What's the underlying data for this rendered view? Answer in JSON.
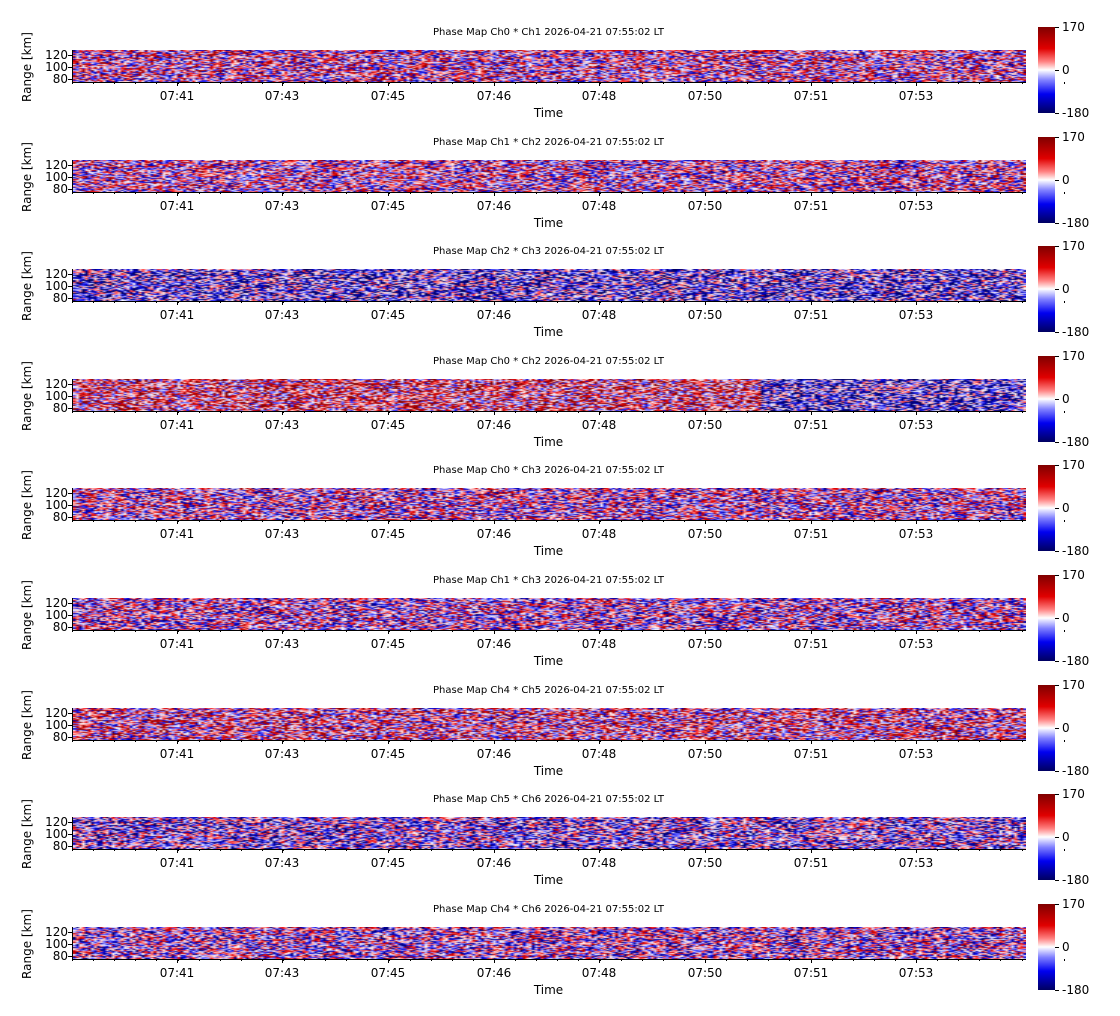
{
  "chart_data": {
    "type": "heatmap",
    "ylabel": "Range [km]",
    "xlabel": "Time",
    "yticks": [
      120,
      100,
      80
    ],
    "ylim": [
      77,
      130
    ],
    "xticks": [
      "07:41",
      "07:43",
      "07:45",
      "07:46",
      "07:48",
      "07:50",
      "07:51",
      "07:53"
    ],
    "colorbar": {
      "min": -180,
      "max": 170,
      "ticks": [
        "170",
        "0",
        "-180"
      ],
      "colormap": "seismic"
    },
    "panels": [
      {
        "title": "Phase Map Ch0 * Ch1 2026-04-21 07:55:02 LT",
        "mean_phase": 15
      },
      {
        "title": "Phase Map Ch1 * Ch2 2026-04-21 07:55:02 LT",
        "mean_phase": 10
      },
      {
        "title": "Phase Map Ch2 * Ch3 2026-04-21 07:55:02 LT",
        "mean_phase": -80
      },
      {
        "title": "Phase Map Ch0 * Ch2 2026-04-21 07:55:02 LT",
        "mean_phase": 20
      },
      {
        "title": "Phase Map Ch0 * Ch3 2026-04-21 07:55:02 LT",
        "mean_phase": 0
      },
      {
        "title": "Phase Map Ch1 * Ch3 2026-04-21 07:55:02 LT",
        "mean_phase": -10
      },
      {
        "title": "Phase Map Ch4 * Ch5 2026-04-21 07:55:02 LT",
        "mean_phase": 30
      },
      {
        "title": "Phase Map Ch5 * Ch6 2026-04-21 07:55:02 LT",
        "mean_phase": -50
      },
      {
        "title": "Phase Map Ch4 * Ch6 2026-04-21 07:55:02 LT",
        "mean_phase": -20
      }
    ]
  }
}
